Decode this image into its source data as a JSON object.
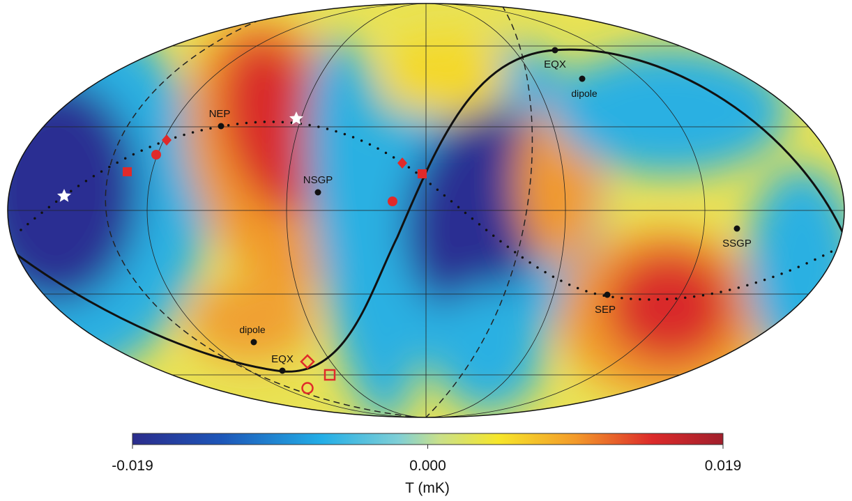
{
  "map": {
    "labels": {
      "nep": "NEP",
      "nsgp": "NSGP",
      "eqx_top": "EQX",
      "dipole_top": "dipole",
      "ssgp": "SSGP",
      "sep": "SEP",
      "dipole_bottom": "dipole",
      "eqx_bottom": "EQX"
    }
  },
  "colorbar": {
    "range": [
      -0.019,
      0.019
    ],
    "ticks": [
      -0.019,
      {
        "value": 0,
        "label": "0.000"
      },
      0.019
    ],
    "label": "T (mK)"
  }
}
